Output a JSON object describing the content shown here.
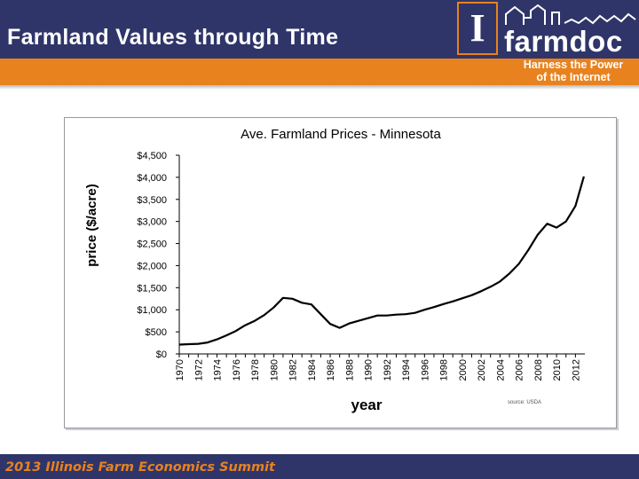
{
  "header": {
    "title": "Farmland Values through Time",
    "logo_letter": "I",
    "logo_word": "farmdoc",
    "tagline_line1": "Harness the Power",
    "tagline_line2": "of the Internet"
  },
  "footer": {
    "text": "2013 Illinois Farm Economics Summit"
  },
  "colors": {
    "navy": "#2f3569",
    "orange": "#e8821e"
  },
  "chart_data": {
    "type": "line",
    "title": "Ave. Farmland Prices  - Minnesota",
    "xlabel": "year",
    "ylabel": "price ($/acre)",
    "source": "source: USDA",
    "ylim": [
      0,
      4500
    ],
    "yticks": [
      0,
      500,
      1000,
      1500,
      2000,
      2500,
      3000,
      3500,
      4000,
      4500
    ],
    "ytick_labels": [
      "$0",
      "$500",
      "$1,000",
      "$1,500",
      "$2,000",
      "$2,500",
      "$3,000",
      "$3,500",
      "$4,000",
      "$4,500"
    ],
    "xlim": [
      1970,
      2012
    ],
    "xticks": [
      1970,
      1972,
      1974,
      1976,
      1978,
      1980,
      1982,
      1984,
      1986,
      1988,
      1990,
      1992,
      1994,
      1996,
      1998,
      2000,
      2002,
      2004,
      2006,
      2008,
      2010,
      2012
    ],
    "grid": false,
    "series": [
      {
        "x": [
          1970,
          1971,
          1972,
          1973,
          1974,
          1975,
          1976,
          1977,
          1978,
          1979,
          1980,
          1981,
          1982,
          1983,
          1984,
          1985,
          1986,
          1987,
          1988,
          1989,
          1990,
          1991,
          1992,
          1993,
          1994,
          1995,
          1996,
          1997,
          1998,
          1999,
          2000,
          2001,
          2002,
          2003,
          2004,
          2005,
          2006,
          2007,
          2008,
          2009,
          2010,
          2011,
          2012
        ],
        "values": [
          210,
          220,
          230,
          260,
          330,
          420,
          520,
          650,
          750,
          880,
          1050,
          1270,
          1250,
          1160,
          1120,
          900,
          680,
          590,
          690,
          750,
          810,
          870,
          870,
          890,
          900,
          930,
          1000,
          1060,
          1130,
          1190,
          1260,
          1330,
          1420,
          1520,
          1640,
          1820,
          2040,
          2350,
          2700,
          2950,
          2860,
          3000,
          3350
        ]
      }
    ],
    "last_point": {
      "x": 2012.9,
      "y": 4020
    }
  }
}
